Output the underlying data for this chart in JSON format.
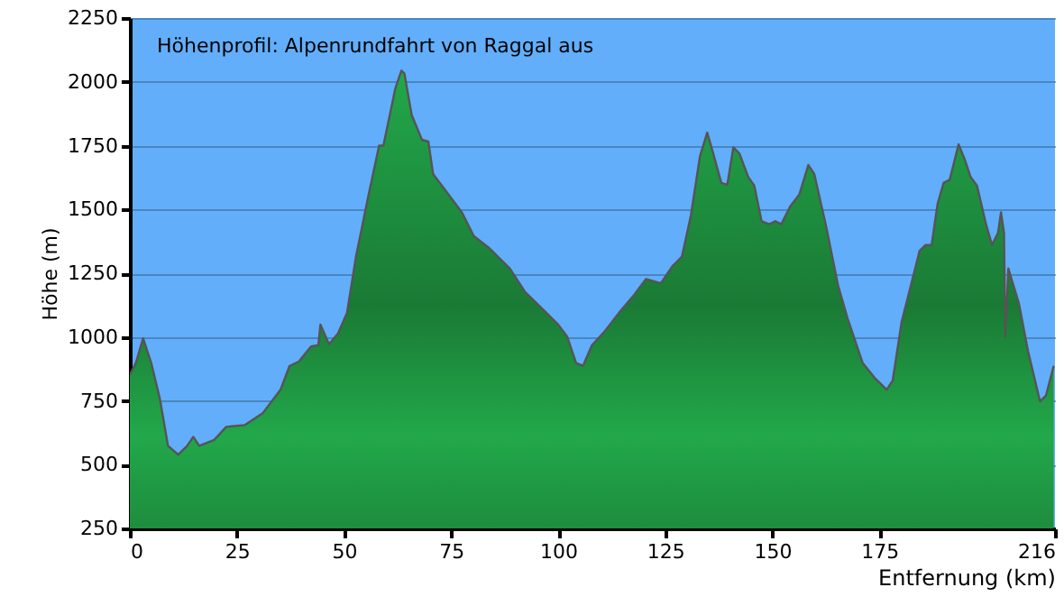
{
  "chart_data": {
    "type": "area",
    "title": "Höhenprofil: Alpenrundfahrt von Raggal aus",
    "xlabel": "Entfernung   (km)",
    "ylabel": "Höhe (m)",
    "xlim": [
      0,
      216
    ],
    "xticks": [
      0,
      25,
      50,
      75,
      100,
      125,
      150,
      175,
      216
    ],
    "ylim": [
      250,
      2250
    ],
    "yticks": [
      250,
      500,
      750,
      1000,
      1250,
      1500,
      1750,
      2000,
      2250
    ],
    "grid": "y",
    "series": [
      {
        "color": "#22a84a",
        "x": [
          0,
          1.4,
          3.1,
          5,
          7,
          8.9,
          11.3,
          13.4,
          14.8,
          16.2,
          19.7,
          22.5,
          26.8,
          31,
          35.2,
          37.3,
          39.4,
          42.3,
          44,
          44.5,
          46.5,
          48.6,
          50.7,
          52.8,
          55.6,
          58.2,
          59.2,
          62,
          63.4,
          64.1,
          65.8,
          68.2,
          69.7,
          70.8,
          73.9,
          77.5,
          80.3,
          83.8,
          87.3,
          88.7,
          92.3,
          96.5,
          100,
          102.1,
          104.2,
          105.8,
          107.9,
          110.7,
          114.2,
          117.7,
          120.5,
          124,
          126.8,
          128.9,
          131,
          133.1,
          134.8,
          136.2,
          138.1,
          139.5,
          140.9,
          142.3,
          144.4,
          145.8,
          147.5,
          149.3,
          150.7,
          152.1,
          154.2,
          156.3,
          158.4,
          159.8,
          162.6,
          165.4,
          167.6,
          169.7,
          171.1,
          173.9,
          176.7,
          178.1,
          180.2,
          182.3,
          184.4,
          185.8,
          187.2,
          188.6,
          190,
          191.4,
          193.5,
          194.9,
          196.3,
          197.8,
          199.9,
          201.3,
          202.7,
          203.4,
          204.1,
          204.4,
          205.1,
          207.6,
          209.7,
          212.5,
          213.9,
          215.7
        ],
        "values": [
          852,
          898,
          995,
          898,
          759,
          574,
          539,
          574,
          609,
          574,
          597,
          648,
          655,
          701,
          794,
          887,
          903,
          963,
          968,
          1049,
          972,
          1014,
          1095,
          1315,
          1546,
          1750,
          1750,
          1975,
          2044,
          2033,
          1870,
          1773,
          1766,
          1639,
          1570,
          1489,
          1396,
          1350,
          1292,
          1269,
          1176,
          1107,
          1049,
          1002,
          898,
          887,
          968,
          1019,
          1095,
          1164,
          1227,
          1211,
          1280,
          1315,
          1477,
          1708,
          1801,
          1720,
          1604,
          1597,
          1743,
          1720,
          1627,
          1593,
          1454,
          1442,
          1454,
          1442,
          1512,
          1558,
          1674,
          1639,
          1431,
          1199,
          1072,
          968,
          898,
          840,
          794,
          829,
          1060,
          1199,
          1338,
          1361,
          1361,
          1523,
          1604,
          1616,
          1755,
          1697,
          1627,
          1593,
          1442,
          1361,
          1408,
          1489,
          1408,
          1002,
          1269,
          1130,
          945,
          748,
          771,
          887
        ]
      }
    ]
  }
}
